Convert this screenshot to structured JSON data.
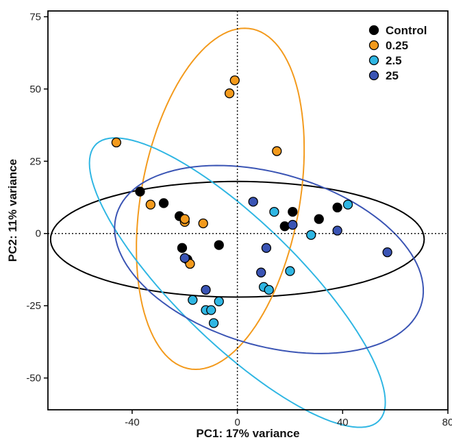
{
  "chart_data": {
    "type": "scatter",
    "title": "",
    "xlabel": "PC1: 17% variance",
    "ylabel": "PC2: 11% variance",
    "xlim": [
      -72,
      80
    ],
    "ylim": [
      -61,
      77
    ],
    "xticks": [
      -40,
      0,
      40,
      80
    ],
    "yticks": [
      -50,
      -25,
      0,
      25,
      50,
      75
    ],
    "grid": false,
    "reference_lines": {
      "x": 0,
      "y": 0,
      "style": "dotted"
    },
    "legend_position": "top-right",
    "series": [
      {
        "name": "Control",
        "color": "#000000",
        "points": [
          [
            -37,
            14.5
          ],
          [
            -28,
            10.5
          ],
          [
            -22,
            6
          ],
          [
            -21,
            -5
          ],
          [
            -19,
            -9
          ],
          [
            -7,
            -4
          ],
          [
            18,
            2.5
          ],
          [
            21,
            7.5
          ],
          [
            31,
            5
          ],
          [
            38,
            9
          ]
        ],
        "ellipse": {
          "center": [
            0,
            -2
          ],
          "rx": 71,
          "ry": 20,
          "angle": 0
        }
      },
      {
        "name": "0.25",
        "color": "#f39a1c",
        "points": [
          [
            -46,
            31.5
          ],
          [
            -33,
            10
          ],
          [
            -20,
            4
          ],
          [
            -20,
            5
          ],
          [
            -18,
            -10.5
          ],
          [
            -13,
            3.5
          ],
          [
            -3,
            48.5
          ],
          [
            -1,
            53
          ],
          [
            15,
            28.5
          ]
        ],
        "ellipse": {
          "center": [
            -6.5,
            12
          ],
          "rx": 30,
          "ry": 60,
          "angle": -12
        }
      },
      {
        "name": "2.5",
        "color": "#2fb6e3",
        "points": [
          [
            -17,
            -23
          ],
          [
            -12,
            -26.5
          ],
          [
            -10,
            -26.5
          ],
          [
            -9,
            -31
          ],
          [
            -7,
            -23.5
          ],
          [
            10,
            -18.5
          ],
          [
            12,
            -19.5
          ],
          [
            14,
            7.5
          ],
          [
            20,
            -13
          ],
          [
            28,
            -0.5
          ],
          [
            42,
            10
          ]
        ],
        "ellipse": {
          "center": [
            0,
            -17
          ],
          "rx": 72,
          "ry": 22,
          "angle": -41
        }
      },
      {
        "name": "25",
        "color": "#3a54b4",
        "points": [
          [
            -20,
            -8.5
          ],
          [
            -12,
            -19.5
          ],
          [
            6,
            11
          ],
          [
            9,
            -13.5
          ],
          [
            11,
            -5
          ],
          [
            21,
            3
          ],
          [
            38,
            1
          ],
          [
            57,
            -6.5
          ]
        ],
        "ellipse": {
          "center": [
            12,
            -9
          ],
          "rx": 60,
          "ry": 30,
          "angle": -14
        }
      }
    ]
  }
}
